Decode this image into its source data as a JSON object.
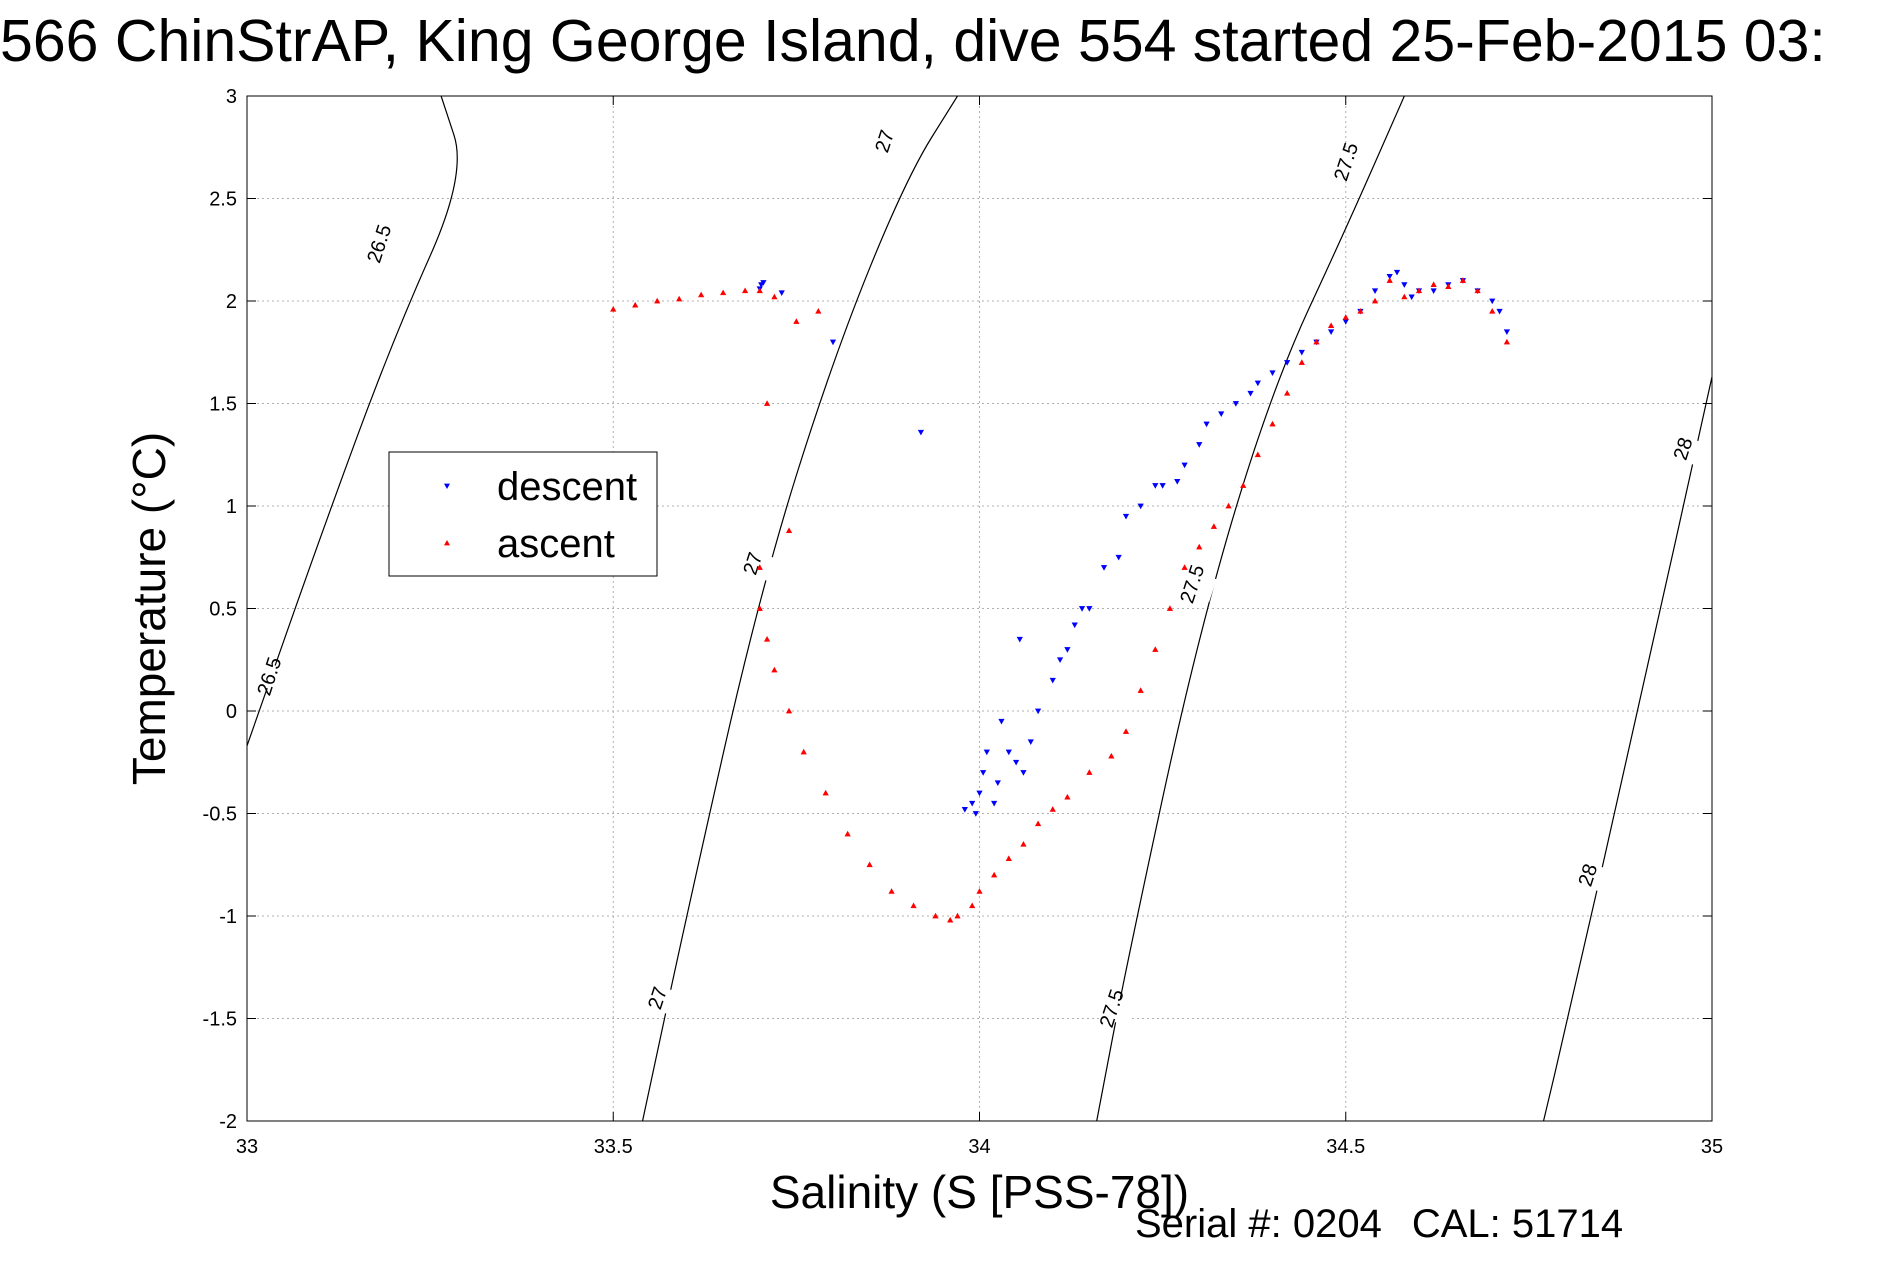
{
  "figure": {
    "title": "566 ChinStrAP, King George Island, dive 554 started 25-Feb-2015 03:",
    "serial_label": "Serial #: 0204",
    "cal_label": "CAL: 51714"
  },
  "chart_data": {
    "type": "scatter",
    "xlabel": "Salinity (S [PSS-78])",
    "ylabel": "Temperature (°C)",
    "xlim": [
      33,
      35
    ],
    "ylim": [
      -2,
      3
    ],
    "xticks": [
      33,
      33.5,
      34,
      34.5,
      35
    ],
    "xtick_labels": [
      "33",
      "33.5",
      "34",
      "34.5",
      "35"
    ],
    "yticks": [
      -2,
      -1.5,
      -1,
      -0.5,
      0,
      0.5,
      1,
      1.5,
      2,
      2.5,
      3
    ],
    "ytick_labels": [
      "-2",
      "-1.5",
      "-1",
      "-0.5",
      "0",
      "0.5",
      "1",
      "1.5",
      "2",
      "2.5",
      "3"
    ],
    "grid": true,
    "legend": {
      "position": "left",
      "entries": [
        "descent",
        "ascent"
      ]
    },
    "colors": {
      "descent": "#0000ff",
      "ascent": "#ff0000",
      "contour": "#000000",
      "grid": "#b0b0b0"
    },
    "contours": [
      {
        "level": "26.5",
        "points": [
          [
            33.0,
            -0.17
          ],
          [
            33.1,
            0.85
          ],
          [
            33.2,
            1.82
          ],
          [
            33.3,
            2.62
          ],
          [
            33.265,
            3.0
          ]
        ],
        "labels": [
          [
            33.03,
            0.17
          ],
          [
            33.18,
            2.28
          ]
        ]
      },
      {
        "level": "27",
        "points": [
          [
            33.54,
            -2.0
          ],
          [
            33.6,
            -1.0
          ],
          [
            33.7,
            0.58
          ],
          [
            33.8,
            1.72
          ],
          [
            33.9,
            2.6
          ],
          [
            33.97,
            3.0
          ]
        ],
        "labels": [
          [
            33.56,
            -1.4
          ],
          [
            33.69,
            0.72
          ],
          [
            33.87,
            2.78
          ]
        ]
      },
      {
        "level": "27.5",
        "points": [
          [
            34.16,
            -2.0
          ],
          [
            34.2,
            -1.25
          ],
          [
            34.3,
            0.4
          ],
          [
            34.4,
            1.58
          ],
          [
            34.5,
            2.35
          ],
          [
            34.58,
            3.0
          ]
        ],
        "labels": [
          [
            34.18,
            -1.45
          ],
          [
            34.29,
            0.62
          ],
          [
            34.5,
            2.68
          ]
        ]
      },
      {
        "level": "28",
        "points": [
          [
            34.77,
            -2.0
          ],
          [
            34.8,
            -1.55
          ],
          [
            34.9,
            0.02
          ],
          [
            35.0,
            1.63
          ]
        ],
        "labels": [
          [
            34.83,
            -0.8
          ],
          [
            34.96,
            1.28
          ]
        ]
      }
    ],
    "series": [
      {
        "name": "descent",
        "marker": "triangle-down",
        "x": [
          33.7,
          33.702,
          33.705,
          33.73,
          33.8,
          33.92,
          33.98,
          33.99,
          33.995,
          34.0,
          34.005,
          34.01,
          34.02,
          34.025,
          34.03,
          34.04,
          34.05,
          34.06,
          34.055,
          34.07,
          34.08,
          34.1,
          34.11,
          34.12,
          34.13,
          34.14,
          34.15,
          34.17,
          34.19,
          34.2,
          34.22,
          34.24,
          34.25,
          34.27,
          34.28,
          34.3,
          34.31,
          34.33,
          34.35,
          34.37,
          34.38,
          34.4,
          34.42,
          34.44,
          34.46,
          34.48,
          34.5,
          34.52,
          34.54,
          34.56,
          34.57,
          34.58,
          34.59,
          34.6,
          34.62,
          34.64,
          34.66,
          34.68,
          34.7,
          34.71,
          34.72
        ],
        "y": [
          2.06,
          2.08,
          2.09,
          2.04,
          1.8,
          1.36,
          -0.48,
          -0.45,
          -0.5,
          -0.4,
          -0.3,
          -0.2,
          -0.45,
          -0.35,
          -0.05,
          -0.2,
          -0.25,
          -0.3,
          0.35,
          -0.15,
          0.0,
          0.15,
          0.25,
          0.3,
          0.42,
          0.5,
          0.5,
          0.7,
          0.75,
          0.95,
          1.0,
          1.1,
          1.1,
          1.12,
          1.2,
          1.3,
          1.4,
          1.45,
          1.5,
          1.55,
          1.6,
          1.65,
          1.7,
          1.75,
          1.8,
          1.85,
          1.9,
          1.95,
          2.05,
          2.12,
          2.14,
          2.08,
          2.02,
          2.05,
          2.05,
          2.08,
          2.1,
          2.05,
          2.0,
          1.95,
          1.85
        ]
      },
      {
        "name": "ascent",
        "marker": "triangle-up",
        "x": [
          33.5,
          33.53,
          33.56,
          33.59,
          33.62,
          33.65,
          33.68,
          33.7,
          33.72,
          33.75,
          33.78,
          33.71,
          33.74,
          33.7,
          33.7,
          33.71,
          33.72,
          33.74,
          33.76,
          33.79,
          33.82,
          33.85,
          33.88,
          33.91,
          33.94,
          33.96,
          33.97,
          33.99,
          34.0,
          34.02,
          34.04,
          34.06,
          34.08,
          34.1,
          34.12,
          34.15,
          34.18,
          34.2,
          34.22,
          34.24,
          34.26,
          34.28,
          34.3,
          34.32,
          34.34,
          34.36,
          34.38,
          34.4,
          34.42,
          34.44,
          34.46,
          34.48,
          34.5,
          34.52,
          34.54,
          34.56,
          34.58,
          34.6,
          34.62,
          34.64,
          34.66,
          34.68,
          34.7,
          34.72
        ],
        "y": [
          1.96,
          1.98,
          2.0,
          2.01,
          2.03,
          2.04,
          2.05,
          2.05,
          2.02,
          1.9,
          1.95,
          1.5,
          0.88,
          0.7,
          0.5,
          0.35,
          0.2,
          0.0,
          -0.2,
          -0.4,
          -0.6,
          -0.75,
          -0.88,
          -0.95,
          -1.0,
          -1.02,
          -1.0,
          -0.95,
          -0.88,
          -0.8,
          -0.72,
          -0.65,
          -0.55,
          -0.48,
          -0.42,
          -0.3,
          -0.22,
          -0.1,
          0.1,
          0.3,
          0.5,
          0.7,
          0.8,
          0.9,
          1.0,
          1.1,
          1.25,
          1.4,
          1.55,
          1.7,
          1.8,
          1.88,
          1.92,
          1.95,
          2.0,
          2.1,
          2.02,
          2.05,
          2.08,
          2.07,
          2.1,
          2.05,
          1.95,
          1.8
        ]
      }
    ]
  }
}
